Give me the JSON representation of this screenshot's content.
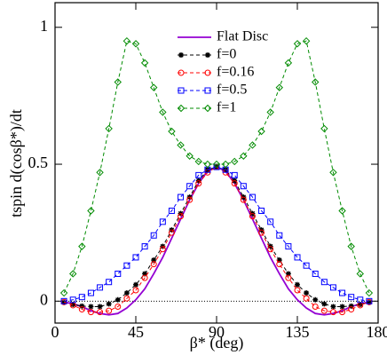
{
  "chart_data": {
    "type": "line",
    "xlabel": "β* (deg)",
    "ylabel": "tspin d(cosβ*)/dt",
    "x": [
      5,
      10,
      15,
      20,
      25,
      30,
      35,
      40,
      45,
      50,
      55,
      60,
      65,
      70,
      75,
      80,
      85,
      90,
      95,
      100,
      105,
      110,
      115,
      120,
      125,
      130,
      135,
      140,
      145,
      150,
      155,
      160,
      165,
      170,
      175
    ],
    "xlim": [
      0,
      180
    ],
    "xticks": [
      0,
      45,
      90,
      135,
      180
    ],
    "ylim": [
      -0.08,
      1.09
    ],
    "yticks": [
      0,
      0.5,
      1
    ],
    "zero_line": true,
    "legend": "top",
    "series": [
      {
        "name": "Flat Disc",
        "color": "#9400d3",
        "marker": "none",
        "dash": "solid",
        "values": [
          -0.003,
          -0.01,
          -0.02,
          -0.035,
          -0.045,
          -0.05,
          -0.045,
          -0.025,
          0.005,
          0.045,
          0.1,
          0.16,
          0.23,
          0.3,
          0.37,
          0.43,
          0.475,
          0.49,
          0.475,
          0.43,
          0.37,
          0.3,
          0.23,
          0.16,
          0.1,
          0.045,
          0.005,
          -0.025,
          -0.045,
          -0.05,
          -0.045,
          -0.035,
          -0.02,
          -0.01,
          -0.003
        ]
      },
      {
        "name": "f=0",
        "color": "#000000",
        "marker": "star",
        "dash": "dashed",
        "values": [
          -0.005,
          -0.012,
          -0.018,
          -0.02,
          -0.02,
          -0.01,
          0.005,
          0.03,
          0.06,
          0.1,
          0.15,
          0.2,
          0.26,
          0.32,
          0.38,
          0.44,
          0.48,
          0.49,
          0.48,
          0.44,
          0.38,
          0.32,
          0.26,
          0.2,
          0.15,
          0.1,
          0.06,
          0.03,
          0.005,
          -0.01,
          -0.02,
          -0.02,
          -0.018,
          -0.012,
          -0.005
        ]
      },
      {
        "name": "f=0.16",
        "color": "#ff0000",
        "marker": "circle",
        "dash": "dashed",
        "values": [
          -0.003,
          -0.015,
          -0.03,
          -0.04,
          -0.04,
          -0.035,
          -0.02,
          0.01,
          0.04,
          0.085,
          0.135,
          0.19,
          0.25,
          0.31,
          0.37,
          0.43,
          0.47,
          0.49,
          0.47,
          0.43,
          0.37,
          0.31,
          0.25,
          0.19,
          0.135,
          0.085,
          0.04,
          0.01,
          -0.02,
          -0.035,
          -0.04,
          -0.04,
          -0.03,
          -0.015,
          -0.003
        ]
      },
      {
        "name": "f=0.5",
        "color": "#0000ff",
        "marker": "square",
        "dash": "dashed",
        "values": [
          0.0,
          0.005,
          0.015,
          0.03,
          0.05,
          0.07,
          0.1,
          0.13,
          0.16,
          0.2,
          0.24,
          0.29,
          0.33,
          0.38,
          0.42,
          0.46,
          0.48,
          0.49,
          0.48,
          0.46,
          0.42,
          0.38,
          0.33,
          0.29,
          0.24,
          0.2,
          0.16,
          0.13,
          0.1,
          0.07,
          0.05,
          0.03,
          0.015,
          0.005,
          0.0
        ]
      },
      {
        "name": "f=1",
        "color": "#008b00",
        "marker": "diamond",
        "dash": "dashed",
        "values": [
          0.03,
          0.1,
          0.2,
          0.33,
          0.47,
          0.63,
          0.8,
          0.95,
          0.94,
          0.87,
          0.78,
          0.69,
          0.62,
          0.57,
          0.53,
          0.51,
          0.5,
          0.5,
          0.5,
          0.51,
          0.53,
          0.57,
          0.62,
          0.69,
          0.78,
          0.87,
          0.94,
          0.95,
          0.8,
          0.63,
          0.47,
          0.33,
          0.2,
          0.1,
          0.03
        ]
      }
    ]
  }
}
